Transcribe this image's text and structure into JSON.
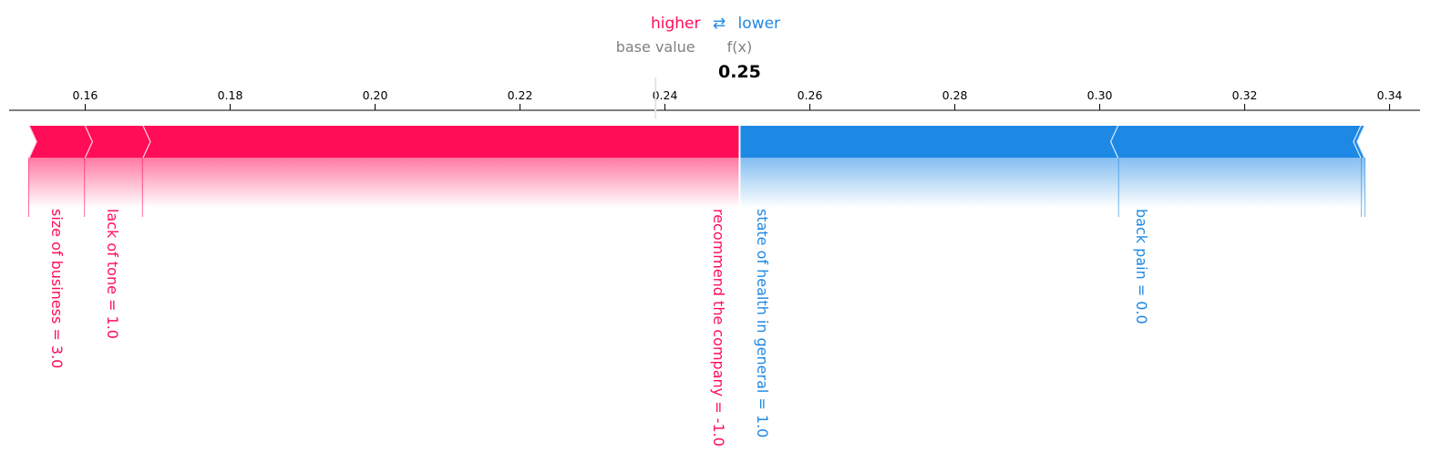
{
  "legend": {
    "higher": "higher",
    "arrows": "⇄",
    "lower": "lower"
  },
  "header": {
    "base_value_label": "base value",
    "fx_label": "f(x)",
    "fx_value": "0.25"
  },
  "colors": {
    "positive": "#ff0d57",
    "negative": "#1e88e5",
    "text_gray": "#808080"
  },
  "chart_data": {
    "type": "force",
    "base_value": 0.2387,
    "output_value": 0.2503,
    "xlim": [
      0.1495,
      0.3442
    ],
    "ticks": [
      "0.16",
      "0.18",
      "0.20",
      "0.22",
      "0.24",
      "0.26",
      "0.28",
      "0.30",
      "0.32",
      "0.34"
    ],
    "tick_values": [
      0.16,
      0.18,
      0.2,
      0.22,
      0.24,
      0.26,
      0.28,
      0.3,
      0.32,
      0.34
    ],
    "features_higher": [
      {
        "label": "recommend the company = -1.0",
        "start": 0.1679,
        "end": 0.2503
      },
      {
        "label": "lack of tone = 1.0",
        "start": 0.1599,
        "end": 0.1679
      },
      {
        "label": "size of business = 3.0",
        "start": 0.1522,
        "end": 0.1599
      }
    ],
    "features_lower": [
      {
        "label": "state of health in general = 1.0",
        "start": 0.2503,
        "end": 0.3026
      },
      {
        "label": "back pain = 0.0",
        "start": 0.3026,
        "end": 0.3361
      },
      {
        "label": "",
        "start": 0.3361,
        "end": 0.3366
      }
    ]
  }
}
